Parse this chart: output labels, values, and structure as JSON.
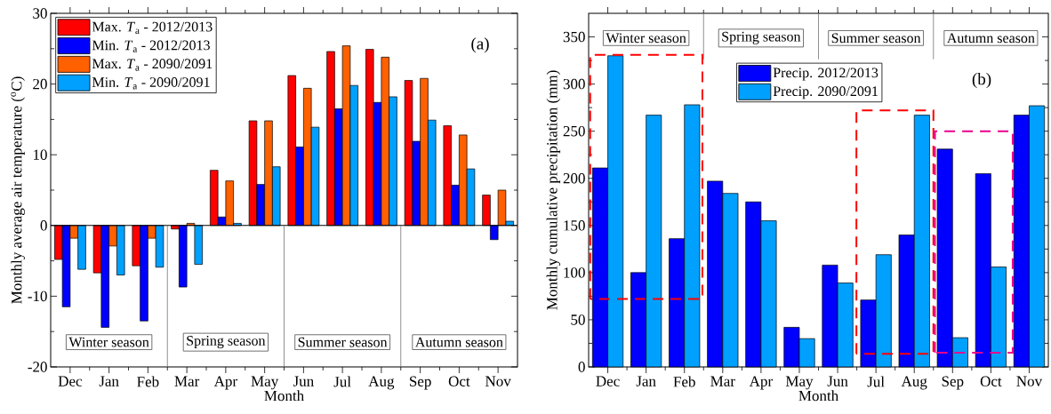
{
  "chart_data": [
    {
      "type": "bar",
      "xlabel": "Month",
      "ylabel": "Monthly average air temperature ($^{o}$C)",
      "categories": [
        "Dec",
        "Jan",
        "Feb",
        "Mar",
        "Apr",
        "May",
        "Jun",
        "Jul",
        "Aug",
        "Sep",
        "Oct",
        "Nov"
      ],
      "series": [
        {
          "name": "Max. *T*$_{a}$ - 2012/2013",
          "color": "#ff0000",
          "values": [
            -4.8,
            -6.7,
            -5.7,
            -0.5,
            7.8,
            14.8,
            21.2,
            24.6,
            24.9,
            20.5,
            14.1,
            4.3
          ]
        },
        {
          "name": "Min. *T*$_{a}$ - 2012/2013",
          "color": "#0000ff",
          "values": [
            -11.5,
            -14.4,
            -13.5,
            -8.7,
            1.2,
            5.8,
            11.1,
            16.5,
            17.4,
            11.9,
            5.7,
            -2.0
          ]
        },
        {
          "name": "Max. *T*$_{a}$ - 2090/2091",
          "color": "#ff6000",
          "values": [
            -1.8,
            -2.9,
            -1.8,
            0.3,
            6.3,
            14.8,
            19.4,
            25.4,
            23.8,
            20.8,
            12.8,
            5.0
          ]
        },
        {
          "name": "Min. *T*$_{a}$ - 2090/2091",
          "color": "#00a0ff",
          "values": [
            -6.2,
            -7.0,
            -5.9,
            -5.5,
            0.3,
            8.3,
            13.9,
            19.8,
            18.2,
            14.9,
            8.0,
            0.6
          ]
        }
      ],
      "ylim": [
        -20,
        30
      ],
      "yticks": [
        -20,
        -10,
        0,
        10,
        20,
        30
      ],
      "legend": "top left",
      "bands": [
        {
          "axis": "x",
          "from": "Dec",
          "to": "Feb",
          "label": "Winter season"
        },
        {
          "axis": "x",
          "from": "Mar",
          "to": "May",
          "label": "Spring season"
        },
        {
          "axis": "x",
          "from": "Jun",
          "to": "Aug",
          "label": "Summer season"
        },
        {
          "axis": "x",
          "from": "Sep",
          "to": "Nov",
          "label": "Autumn season"
        }
      ],
      "annotations": [
        "(a)"
      ]
    },
    {
      "type": "bar",
      "xlabel": "Month",
      "ylabel": "Monthly cumulative precipitation (mm)",
      "categories": [
        "Dec",
        "Jan",
        "Feb",
        "Mar",
        "Apr",
        "May",
        "Jun",
        "Jul",
        "Aug",
        "Sep",
        "Oct",
        "Nov"
      ],
      "series": [
        {
          "name": "Precip. 2012/2013",
          "color": "#0000ff",
          "values": [
            211,
            100,
            136,
            197,
            175,
            42,
            108,
            71,
            140,
            231,
            205,
            267
          ]
        },
        {
          "name": "Precip. 2090/2091",
          "color": "#00a0ff",
          "values": [
            330,
            267,
            278,
            184,
            155,
            30,
            89,
            119,
            267,
            31,
            106,
            277
          ]
        }
      ],
      "ylim": [
        0,
        375
      ],
      "yticks": [
        0,
        50,
        100,
        150,
        200,
        250,
        300,
        350
      ],
      "legend": "top",
      "bands": [
        {
          "axis": "x",
          "from": "Dec",
          "to": "Feb",
          "label": "Winter season"
        },
        {
          "axis": "x",
          "from": "Mar",
          "to": "May",
          "label": "Spring season"
        },
        {
          "axis": "x",
          "from": "Jun",
          "to": "Aug",
          "label": "Summer season"
        },
        {
          "axis": "x",
          "from": "Sep",
          "to": "Nov",
          "label": "Autumn season"
        }
      ],
      "annotations": [
        "(b)"
      ]
    }
  ]
}
